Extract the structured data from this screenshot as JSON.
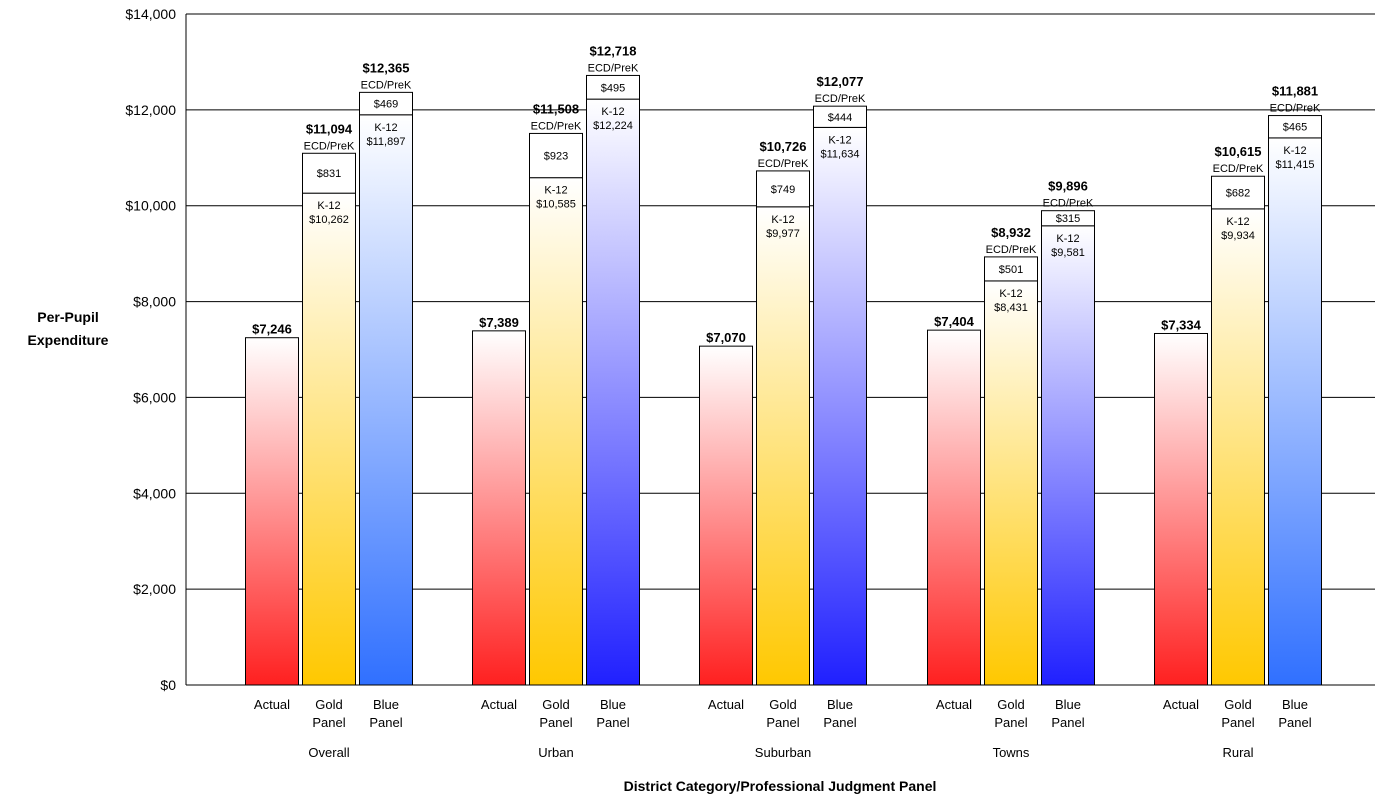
{
  "chart_data": {
    "type": "bar",
    "xlabel": "District Category/Professional Judgment Panel",
    "ylabel": [
      "Per-Pupil",
      "Expenditure"
    ],
    "ylim": [
      0,
      14000
    ],
    "yticks": [
      "$0",
      "$2,000",
      "$4,000",
      "$6,000",
      "$8,000",
      "$10,000",
      "$12,000",
      "$14,000"
    ],
    "ytick_values": [
      0,
      2000,
      4000,
      6000,
      8000,
      10000,
      12000,
      14000
    ],
    "grid": true,
    "colors": {
      "actual_top": "#ffffff",
      "actual_bottom": "#ff2020",
      "gold_top": "#ffffff",
      "gold_bottom": "#ffc800",
      "blue_top": "#ffffff",
      "blue_bottom": "#2020ff",
      "blue_bottom_alt": "#3070ff"
    },
    "groups": [
      {
        "name": "Overall",
        "bars": [
          {
            "label": [
              "Actual"
            ],
            "type": "actual",
            "total": 7246,
            "total_label": "$7,246"
          },
          {
            "label": [
              "Gold",
              "Panel"
            ],
            "type": "gold",
            "total": 11094,
            "total_label": "$11,094",
            "k12": 10262,
            "k12_label": "$10,262",
            "ecd": 831,
            "ecd_label": "$831"
          },
          {
            "label": [
              "Blue",
              "Panel"
            ],
            "type": "blue-alt",
            "total": 12365,
            "total_label": "$12,365",
            "k12": 11897,
            "k12_label": "$11,897",
            "ecd": 469,
            "ecd_label": "$469"
          }
        ]
      },
      {
        "name": "Urban",
        "bars": [
          {
            "label": [
              "Actual"
            ],
            "type": "actual",
            "total": 7389,
            "total_label": "$7,389"
          },
          {
            "label": [
              "Gold",
              "Panel"
            ],
            "type": "gold",
            "total": 11508,
            "total_label": "$11,508",
            "k12": 10585,
            "k12_label": "$10,585",
            "ecd": 923,
            "ecd_label": "$923"
          },
          {
            "label": [
              "Blue",
              "Panel"
            ],
            "type": "blue",
            "total": 12718,
            "total_label": "$12,718",
            "k12": 12224,
            "k12_label": "$12,224",
            "ecd": 495,
            "ecd_label": "$495"
          }
        ]
      },
      {
        "name": "Suburban",
        "bars": [
          {
            "label": [
              "Actual"
            ],
            "type": "actual",
            "total": 7070,
            "total_label": "$7,070"
          },
          {
            "label": [
              "Gold",
              "Panel"
            ],
            "type": "gold",
            "total": 10726,
            "total_label": "$10,726",
            "k12": 9977,
            "k12_label": "$9,977",
            "ecd": 749,
            "ecd_label": "$749"
          },
          {
            "label": [
              "Blue",
              "Panel"
            ],
            "type": "blue",
            "total": 12077,
            "total_label": "$12,077",
            "k12": 11634,
            "k12_label": "$11,634",
            "ecd": 444,
            "ecd_label": "$444"
          }
        ]
      },
      {
        "name": "Towns",
        "bars": [
          {
            "label": [
              "Actual"
            ],
            "type": "actual",
            "total": 7404,
            "total_label": "$7,404"
          },
          {
            "label": [
              "Gold",
              "Panel"
            ],
            "type": "gold",
            "total": 8932,
            "total_label": "$8,932",
            "k12": 8431,
            "k12_label": "$8,431",
            "ecd": 501,
            "ecd_label": "$501"
          },
          {
            "label": [
              "Blue",
              "Panel"
            ],
            "type": "blue",
            "total": 9896,
            "total_label": "$9,896",
            "k12": 9581,
            "k12_label": "$9,581",
            "ecd": 315,
            "ecd_label": "$315"
          }
        ]
      },
      {
        "name": "Rural",
        "bars": [
          {
            "label": [
              "Actual"
            ],
            "type": "actual",
            "total": 7334,
            "total_label": "$7,334"
          },
          {
            "label": [
              "Gold",
              "Panel"
            ],
            "type": "gold",
            "total": 10615,
            "total_label": "$10,615",
            "k12": 9934,
            "k12_label": "$9,934",
            "ecd": 682,
            "ecd_label": "$682"
          },
          {
            "label": [
              "Blue",
              "Panel"
            ],
            "type": "blue-alt",
            "total": 11881,
            "total_label": "$11,881",
            "k12": 11415,
            "k12_label": "$11,415",
            "ecd": 465,
            "ecd_label": "$465"
          }
        ]
      }
    ],
    "segment_names": {
      "k12": "K-12",
      "ecd": "ECD/PreK"
    }
  }
}
